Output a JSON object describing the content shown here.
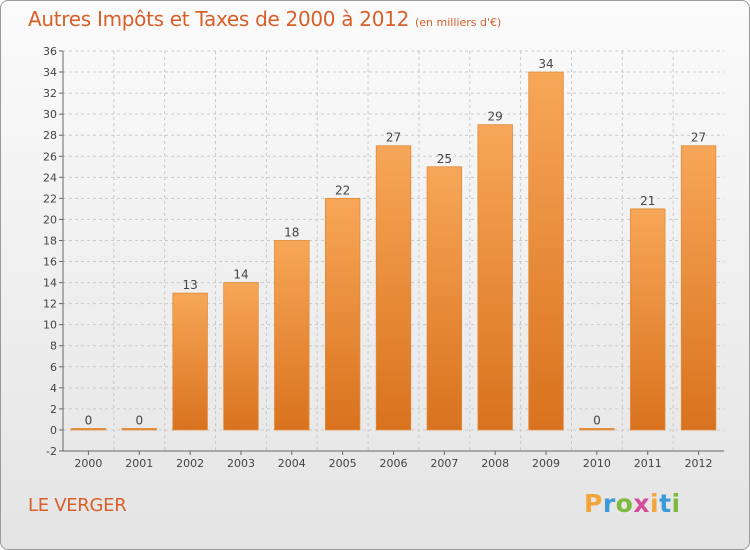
{
  "header": {
    "title": "Autres Impôts et Taxes de 2000 à 2012",
    "unit": "(en milliers d'€)"
  },
  "footer": {
    "commune": "LE VERGER",
    "logo": [
      "P",
      "r",
      "o",
      "x",
      "i",
      "t",
      "i"
    ],
    "logo_colors": [
      "#f3a43b",
      "#3b9bd8",
      "#7db93f",
      "#d64b9b",
      "#f3a43b",
      "#3b9bd8",
      "#7db93f"
    ]
  },
  "colors": {
    "accent": "#d95f28",
    "bar_top": "#f7a758",
    "bar_bottom": "#d9721e",
    "grid": "#c9c9c9"
  },
  "chart_data": {
    "type": "bar",
    "title": "Autres Impôts et Taxes de 2000 à 2012",
    "categories": [
      "2000",
      "2001",
      "2002",
      "2003",
      "2004",
      "2005",
      "2006",
      "2007",
      "2008",
      "2009",
      "2010",
      "2011",
      "2012"
    ],
    "values": [
      0,
      0,
      13,
      14,
      18,
      22,
      27,
      25,
      29,
      34,
      0,
      21,
      27
    ],
    "yticks": [
      -2,
      0,
      2,
      4,
      6,
      8,
      10,
      12,
      14,
      16,
      18,
      20,
      22,
      24,
      26,
      28,
      30,
      32,
      34,
      36
    ],
    "ylim": [
      -2,
      36
    ],
    "grid": true,
    "data_labels": true
  }
}
